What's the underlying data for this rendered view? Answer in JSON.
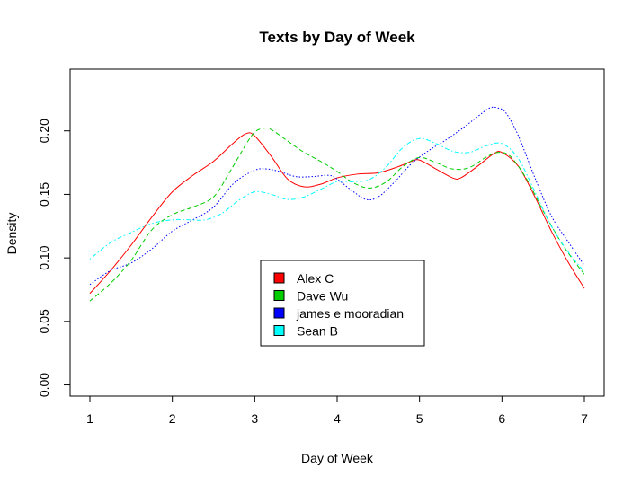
{
  "chart_data": {
    "type": "line",
    "title": "Texts by Day of Week",
    "xlabel": "Day of Week",
    "ylabel": "Density",
    "xlim": [
      0.76,
      7.24
    ],
    "ylim": [
      -0.0088,
      0.2486
    ],
    "x_ticks": [
      1,
      2,
      3,
      4,
      5,
      6,
      7
    ],
    "x_tick_labels": [
      "1",
      "2",
      "3",
      "4",
      "5",
      "6",
      "7"
    ],
    "y_ticks": [
      0.0,
      0.05,
      0.1,
      0.15,
      0.2
    ],
    "y_tick_labels": [
      "0.00",
      "0.05",
      "0.10",
      "0.15",
      "0.20"
    ],
    "grid": false,
    "legend_position": "center-bottom",
    "series": [
      {
        "name": "Alex C",
        "color": "#ff0000",
        "dash": "solid",
        "x": [
          1.0,
          1.25,
          1.5,
          1.75,
          2.0,
          2.25,
          2.5,
          2.75,
          2.9,
          3.0,
          3.2,
          3.4,
          3.6,
          3.8,
          4.0,
          4.25,
          4.5,
          4.75,
          4.9,
          5.0,
          5.2,
          5.4,
          5.5,
          5.7,
          5.9,
          6.0,
          6.2,
          6.4,
          6.6,
          6.8,
          7.0
        ],
        "y": [
          0.072,
          0.09,
          0.11,
          0.132,
          0.152,
          0.165,
          0.176,
          0.191,
          0.198,
          0.196,
          0.18,
          0.162,
          0.156,
          0.158,
          0.163,
          0.166,
          0.167,
          0.172,
          0.176,
          0.177,
          0.17,
          0.163,
          0.163,
          0.172,
          0.182,
          0.183,
          0.172,
          0.148,
          0.121,
          0.097,
          0.076
        ]
      },
      {
        "name": "Dave Wu",
        "color": "#00cd00",
        "dash": "dashed",
        "x": [
          1.0,
          1.25,
          1.5,
          1.75,
          2.0,
          2.25,
          2.5,
          2.7,
          2.9,
          3.0,
          3.1,
          3.2,
          3.4,
          3.6,
          3.8,
          4.0,
          4.2,
          4.4,
          4.6,
          4.8,
          5.0,
          5.2,
          5.4,
          5.6,
          5.8,
          5.95,
          6.1,
          6.3,
          6.5,
          6.75,
          7.0
        ],
        "y": [
          0.066,
          0.08,
          0.098,
          0.122,
          0.134,
          0.14,
          0.148,
          0.168,
          0.19,
          0.199,
          0.202,
          0.201,
          0.192,
          0.183,
          0.176,
          0.168,
          0.159,
          0.155,
          0.16,
          0.172,
          0.179,
          0.175,
          0.17,
          0.171,
          0.179,
          0.183,
          0.18,
          0.162,
          0.137,
          0.109,
          0.087
        ]
      },
      {
        "name": "james e mooradian",
        "color": "#0000ff",
        "dash": "dotted",
        "x": [
          1.0,
          1.25,
          1.5,
          1.75,
          2.0,
          2.25,
          2.5,
          2.75,
          3.0,
          3.15,
          3.3,
          3.5,
          3.7,
          3.9,
          4.0,
          4.2,
          4.35,
          4.5,
          4.7,
          4.9,
          5.1,
          5.3,
          5.5,
          5.7,
          5.85,
          5.95,
          6.05,
          6.2,
          6.4,
          6.6,
          6.8,
          7.0
        ],
        "y": [
          0.079,
          0.09,
          0.096,
          0.107,
          0.121,
          0.13,
          0.14,
          0.159,
          0.169,
          0.17,
          0.168,
          0.164,
          0.164,
          0.165,
          0.162,
          0.152,
          0.146,
          0.148,
          0.16,
          0.174,
          0.184,
          0.192,
          0.201,
          0.211,
          0.218,
          0.218,
          0.214,
          0.196,
          0.163,
          0.133,
          0.113,
          0.094
        ]
      },
      {
        "name": "Sean B",
        "color": "#00ffff",
        "dash": "dashdot",
        "x": [
          1.0,
          1.25,
          1.5,
          1.75,
          2.0,
          2.2,
          2.4,
          2.6,
          2.8,
          3.0,
          3.2,
          3.4,
          3.6,
          3.8,
          4.0,
          4.2,
          4.4,
          4.6,
          4.8,
          5.0,
          5.2,
          5.4,
          5.6,
          5.8,
          6.0,
          6.2,
          6.4,
          6.6,
          6.8,
          7.0
        ],
        "y": [
          0.099,
          0.112,
          0.12,
          0.127,
          0.13,
          0.13,
          0.13,
          0.135,
          0.145,
          0.152,
          0.15,
          0.146,
          0.148,
          0.154,
          0.16,
          0.16,
          0.162,
          0.172,
          0.187,
          0.194,
          0.19,
          0.184,
          0.183,
          0.188,
          0.19,
          0.178,
          0.152,
          0.125,
          0.105,
          0.089
        ]
      }
    ]
  }
}
